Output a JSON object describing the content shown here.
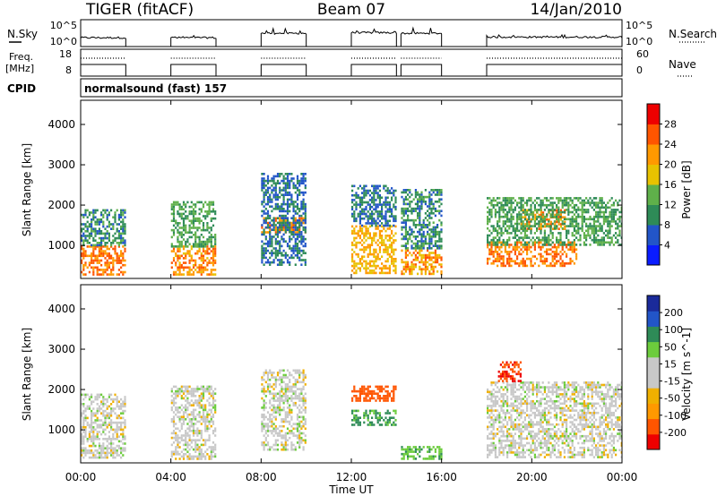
{
  "header": {
    "radar": "TIGER (fitACF)",
    "beam": "Beam 07",
    "date": "14/Jan/2010"
  },
  "noise_panel": {
    "left_label": "N.Sky",
    "right_label": "N.Search",
    "left_ticks": [
      "10^5",
      "10^0"
    ],
    "right_ticks": [
      "10^5",
      "10^0"
    ]
  },
  "freq_panel": {
    "left_label_1": "Freq.",
    "left_label_2": "[MHz]",
    "right_label": "Nave",
    "left_ticks": [
      "18",
      "8"
    ],
    "right_ticks": [
      "60",
      "0"
    ]
  },
  "cpid_panel": {
    "label": "CPID",
    "mode": "normalsound (fast) 157"
  },
  "x_axis": {
    "label": "Time UT",
    "ticks": [
      "00:00",
      "04:00",
      "08:00",
      "12:00",
      "16:00",
      "20:00",
      "00:00"
    ]
  },
  "colors": {
    "power_scale": [
      "#0a1cff",
      "#2255c8",
      "#2e8b57",
      "#5fb04a",
      "#e8c200",
      "#ff9900",
      "#ff5500",
      "#ee0000"
    ],
    "velocity_scale": [
      "#ee0000",
      "#ff5500",
      "#ff9900",
      "#f0b000",
      "#c8c8c8",
      "#c8c8c8",
      "#6ccc3c",
      "#2e8b57",
      "#2255c8",
      "#1a2a9a"
    ]
  },
  "chart_data": [
    {
      "type": "heatmap",
      "title": "",
      "ylabel": "Slant Range [km]",
      "xlabel": "",
      "ylim": [
        180,
        4600
      ],
      "yticks": [
        1000,
        2000,
        3000,
        4000
      ],
      "x_hours": [
        0,
        24
      ],
      "colorbar": {
        "label": "Power [dB]",
        "ticks": [
          "4",
          "8",
          "12",
          "16",
          "20",
          "24",
          "28"
        ]
      },
      "data_periods_hours": [
        [
          0,
          2
        ],
        [
          4,
          6
        ],
        [
          8,
          10
        ],
        [
          12,
          14
        ],
        [
          14.2,
          16
        ],
        [
          18,
          24
        ]
      ],
      "scatter_features": [
        {
          "t_start": 0,
          "t_end": 2,
          "r_low": 300,
          "r_high": 1000,
          "power_db": 26
        },
        {
          "t_start": 0,
          "t_end": 2,
          "r_low": 1000,
          "r_high": 1900,
          "power_db": 12
        },
        {
          "t_start": 4,
          "t_end": 6,
          "r_low": 300,
          "r_high": 1000,
          "power_db": 25
        },
        {
          "t_start": 4,
          "t_end": 6,
          "r_low": 1000,
          "r_high": 2100,
          "power_db": 14
        },
        {
          "t_start": 8,
          "t_end": 10,
          "r_low": 1350,
          "r_high": 1700,
          "power_db": 26
        },
        {
          "t_start": 8,
          "t_end": 10,
          "r_low": 500,
          "r_high": 2800,
          "power_db": 10
        },
        {
          "t_start": 12,
          "t_end": 14,
          "r_low": 300,
          "r_high": 1500,
          "power_db": 22
        },
        {
          "t_start": 12,
          "t_end": 14,
          "r_low": 1500,
          "r_high": 2500,
          "power_db": 10
        },
        {
          "t_start": 14.2,
          "t_end": 16,
          "r_low": 300,
          "r_high": 900,
          "power_db": 24
        },
        {
          "t_start": 14.2,
          "t_end": 16,
          "r_low": 900,
          "r_high": 2400,
          "power_db": 12
        },
        {
          "t_start": 18,
          "t_end": 22,
          "r_low": 500,
          "r_high": 1100,
          "power_db": 26
        },
        {
          "t_start": 19.5,
          "t_end": 21.5,
          "r_low": 1400,
          "r_high": 1900,
          "power_db": 25
        },
        {
          "t_start": 18,
          "t_end": 24,
          "r_low": 1000,
          "r_high": 2200,
          "power_db": 14
        }
      ]
    },
    {
      "type": "heatmap",
      "title": "",
      "ylabel": "Slant Range [km]",
      "xlabel": "Time UT",
      "ylim": [
        180,
        4600
      ],
      "yticks": [
        1000,
        2000,
        3000,
        4000
      ],
      "x_hours": [
        0,
        24
      ],
      "colorbar": {
        "label": "Velocity [m s^-1]",
        "ticks": [
          "200",
          "100",
          "50",
          "15",
          "-15",
          "-50",
          "-100",
          "-200"
        ]
      },
      "data_periods_hours": [
        [
          0,
          2
        ],
        [
          4,
          6
        ],
        [
          8,
          10
        ],
        [
          12,
          14
        ],
        [
          14.2,
          16
        ],
        [
          18,
          24
        ]
      ],
      "scatter_features": [
        {
          "t_start": 0,
          "t_end": 2,
          "r_low": 300,
          "r_high": 1900,
          "velocity": 0
        },
        {
          "t_start": 4,
          "t_end": 6,
          "r_low": 300,
          "r_high": 2100,
          "velocity": 0
        },
        {
          "t_start": 8,
          "t_end": 10,
          "r_low": 500,
          "r_high": 2500,
          "velocity": 0
        },
        {
          "t_start": 12,
          "t_end": 14,
          "r_low": 1100,
          "r_high": 1500,
          "velocity": 60
        },
        {
          "t_start": 12,
          "t_end": 14,
          "r_low": 1700,
          "r_high": 2100,
          "velocity": -120
        },
        {
          "t_start": 14.2,
          "t_end": 16,
          "r_low": 300,
          "r_high": 600,
          "velocity": 40
        },
        {
          "t_start": 18,
          "t_end": 24,
          "r_low": 300,
          "r_high": 2200,
          "velocity": 0
        },
        {
          "t_start": 18.5,
          "t_end": 19.5,
          "r_low": 2200,
          "r_high": 2700,
          "velocity": -150
        }
      ]
    }
  ]
}
